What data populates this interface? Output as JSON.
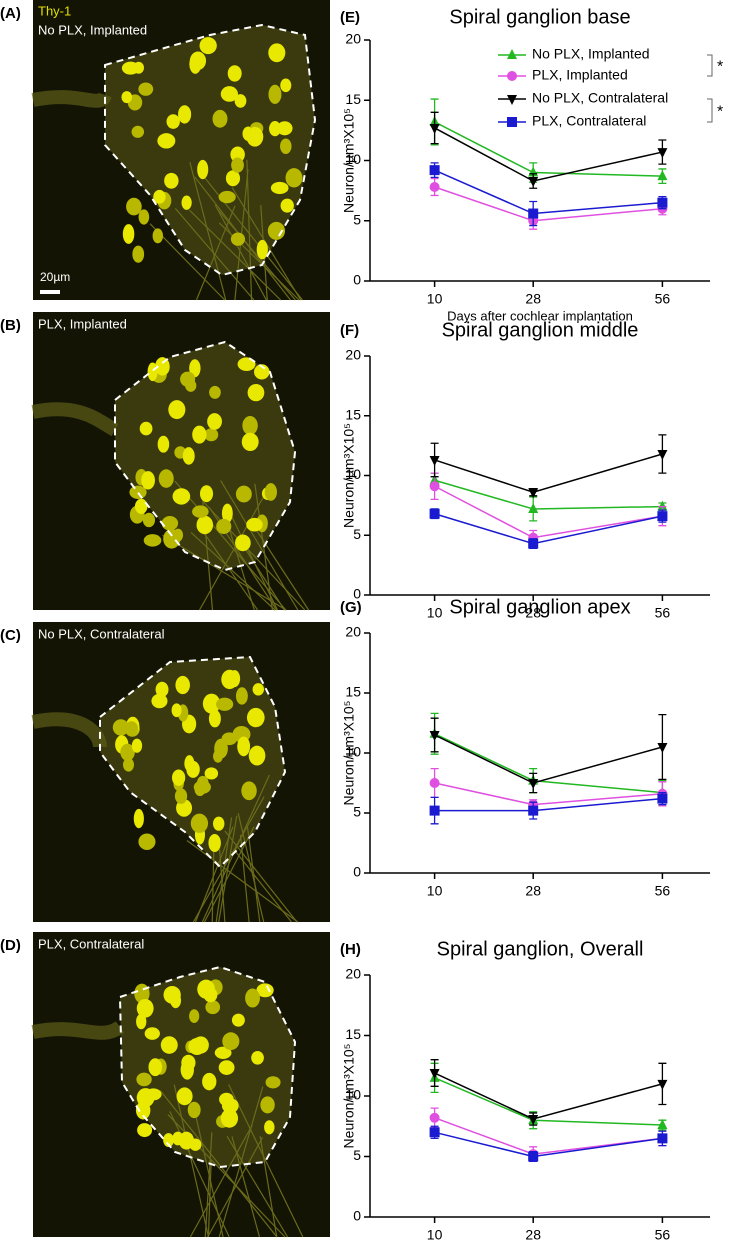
{
  "image_panels": [
    {
      "label": "(A)",
      "stain": "Thy-1",
      "caption": "No PLX, Implanted",
      "scale_bar": "20µm"
    },
    {
      "label": "(B)",
      "caption": "PLX, Implanted"
    },
    {
      "label": "(C)",
      "caption": "No PLX, Contralateral"
    },
    {
      "label": "(D)",
      "caption": "PLX, Contralateral"
    }
  ],
  "chart_data": [
    {
      "type": "line",
      "panel_label": "(E)",
      "title": "Spiral ganglion base",
      "y_label": "Neuron/µm³X10⁵",
      "x_label": "Days after cochlear implantation",
      "categories": [
        "10",
        "28",
        "56"
      ],
      "ylim": [
        0,
        20
      ],
      "yticks": [
        0,
        5,
        10,
        15,
        20
      ],
      "legend": true,
      "brackets": [
        {
          "text": "*",
          "series": [
            0,
            1
          ]
        },
        {
          "text": "*",
          "series": [
            2,
            3
          ]
        }
      ],
      "series": [
        {
          "name": "No PLX, Implanted",
          "color": "#22b822",
          "marker": "triangle-up",
          "values": [
            13.2,
            9.0,
            8.7
          ],
          "errors": [
            1.9,
            0.8,
            0.6
          ]
        },
        {
          "name": "PLX, Implanted",
          "color": "#e050e0",
          "marker": "circle",
          "values": [
            7.8,
            5.0,
            6.0
          ],
          "errors": [
            0.7,
            0.7,
            0.5
          ]
        },
        {
          "name": "No PLX, Contralateral",
          "color": "#000000",
          "marker": "triangle-down",
          "values": [
            12.7,
            8.3,
            10.7
          ],
          "errors": [
            1.3,
            0.6,
            1.0
          ]
        },
        {
          "name": "PLX, Contralateral",
          "color": "#1a1ad0",
          "marker": "square",
          "values": [
            9.2,
            5.6,
            6.5
          ],
          "errors": [
            0.6,
            1.0,
            0.5
          ]
        }
      ]
    },
    {
      "type": "line",
      "panel_label": "(F)",
      "title": "Spiral ganglion middle",
      "y_label": "Neuron/µm³X10⁵",
      "categories": [
        "10",
        "28",
        "56"
      ],
      "ylim": [
        0,
        20
      ],
      "yticks": [
        0,
        5,
        10,
        15,
        20
      ],
      "series": [
        {
          "color": "#22b822",
          "marker": "triangle-up",
          "values": [
            9.6,
            7.2,
            7.4
          ],
          "errors": [
            0.6,
            1.0,
            0.3
          ]
        },
        {
          "color": "#e050e0",
          "marker": "circle",
          "values": [
            9.1,
            4.8,
            6.6
          ],
          "errors": [
            1.1,
            0.6,
            0.8
          ]
        },
        {
          "color": "#000000",
          "marker": "triangle-down",
          "values": [
            11.3,
            8.6,
            11.8
          ],
          "errors": [
            1.4,
            0.3,
            1.6
          ]
        },
        {
          "color": "#1a1ad0",
          "marker": "square",
          "values": [
            6.8,
            4.3,
            6.6
          ],
          "errors": [
            0.4,
            0.4,
            0.5
          ]
        }
      ]
    },
    {
      "type": "line",
      "panel_label": "(G)",
      "title": "Spiral ganglion apex",
      "y_label": "Neuron/µm³X10⁵",
      "categories": [
        "10",
        "28",
        "56"
      ],
      "ylim": [
        0,
        20
      ],
      "yticks": [
        0,
        5,
        10,
        15,
        20
      ],
      "series": [
        {
          "color": "#22b822",
          "marker": "triangle-up",
          "values": [
            11.6,
            7.7,
            6.7
          ],
          "errors": [
            1.7,
            1.0,
            1.0
          ]
        },
        {
          "color": "#e050e0",
          "marker": "circle",
          "values": [
            7.5,
            5.7,
            6.6
          ],
          "errors": [
            1.2,
            0.4,
            1.0
          ]
        },
        {
          "color": "#000000",
          "marker": "triangle-down",
          "values": [
            11.5,
            7.5,
            10.5
          ],
          "errors": [
            1.4,
            0.8,
            2.7
          ]
        },
        {
          "color": "#1a1ad0",
          "marker": "square",
          "values": [
            5.2,
            5.2,
            6.2
          ],
          "errors": [
            1.1,
            0.7,
            0.5
          ]
        }
      ]
    },
    {
      "type": "line",
      "panel_label": "(H)",
      "title": "Spiral ganglion, Overall",
      "y_label": "Neuron/µm³X10⁵",
      "categories": [
        "10",
        "28",
        "56"
      ],
      "ylim": [
        0,
        20
      ],
      "yticks": [
        0,
        5,
        10,
        15,
        20
      ],
      "series": [
        {
          "color": "#22b822",
          "marker": "triangle-up",
          "values": [
            11.5,
            8.0,
            7.6
          ],
          "errors": [
            1.2,
            0.7,
            0.4
          ]
        },
        {
          "color": "#e050e0",
          "marker": "circle",
          "values": [
            8.2,
            5.2,
            6.5
          ],
          "errors": [
            0.8,
            0.6,
            0.6
          ]
        },
        {
          "color": "#000000",
          "marker": "triangle-down",
          "values": [
            11.9,
            8.1,
            11.0
          ],
          "errors": [
            1.1,
            0.5,
            1.7
          ]
        },
        {
          "color": "#1a1ad0",
          "marker": "square",
          "values": [
            7.0,
            5.0,
            6.5
          ],
          "errors": [
            0.5,
            0.4,
            0.6
          ]
        }
      ]
    }
  ]
}
